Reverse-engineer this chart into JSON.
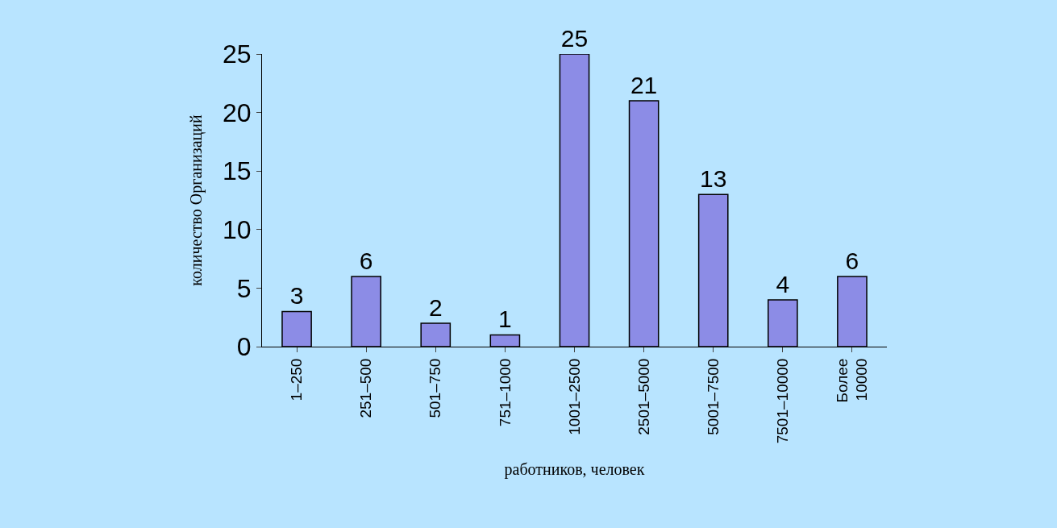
{
  "chart_data": {
    "type": "bar",
    "xlabel": "работников, человек",
    "ylabel": "количество Организаций",
    "categories": [
      "1–250",
      "251–500",
      "501–750",
      "751–1000",
      "1001–2500",
      "2501–5000",
      "5001–7500",
      "7501–10000",
      "Более\n10000"
    ],
    "values": [
      3,
      6,
      2,
      1,
      25,
      21,
      13,
      4,
      6
    ],
    "color": "#8c8ce6",
    "ylim": [
      0,
      25
    ],
    "yticks": [
      0,
      5,
      10,
      15,
      20,
      25
    ],
    "data_labels": true
  }
}
